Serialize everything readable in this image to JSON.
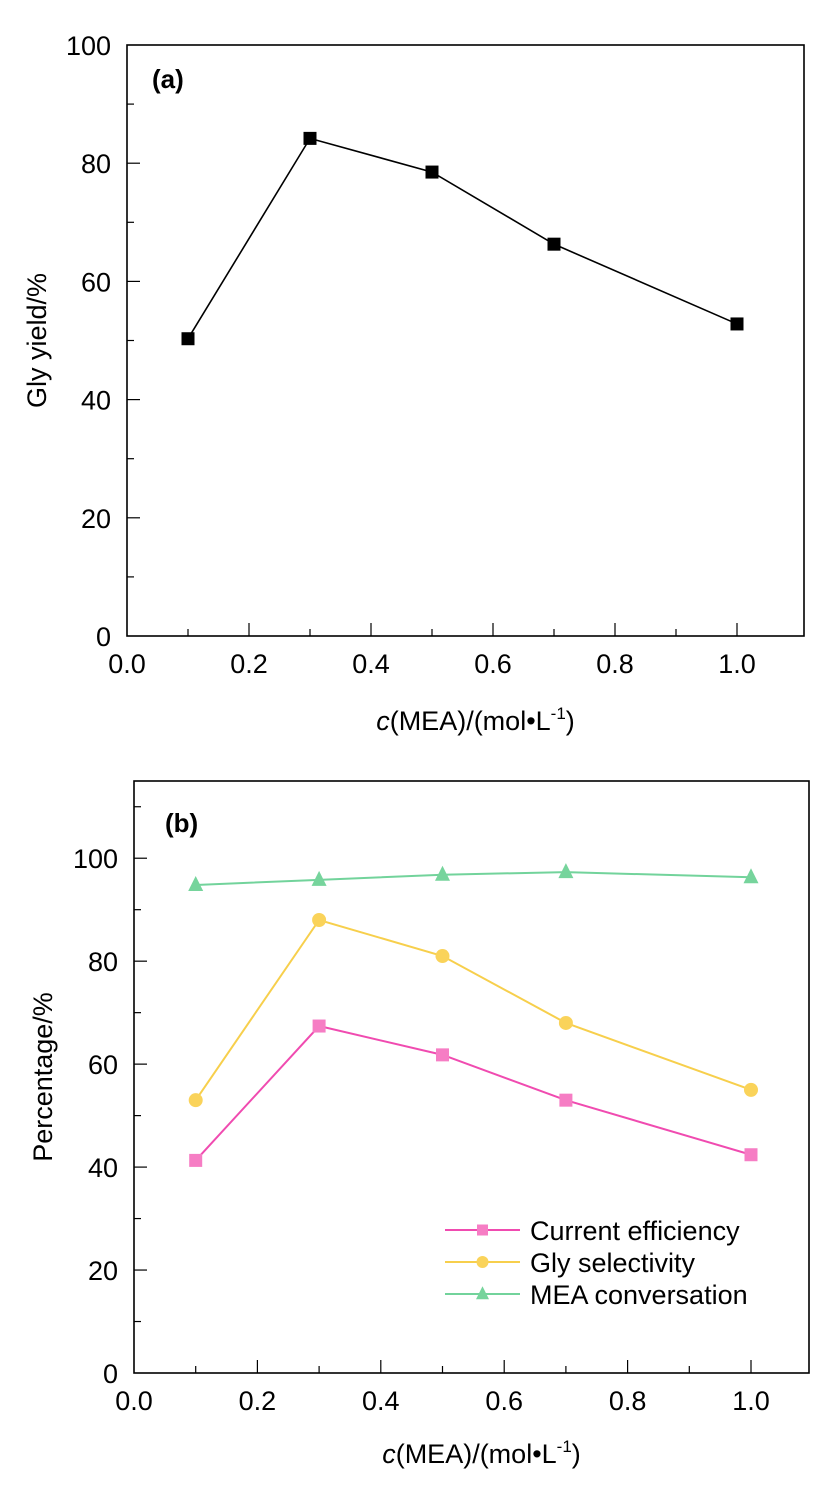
{
  "chart_data": [
    {
      "type": "line",
      "panel_label": "(a)",
      "title": "",
      "xlabel_italic": "c",
      "xlabel_rest": "(MEA)/(mol•L",
      "xlabel_sup": "-1",
      "xlabel_close": ")",
      "ylabel": "Gly yield/%",
      "xlim": [
        0,
        1.1
      ],
      "ylim": [
        0,
        100
      ],
      "x_ticks": [
        0.0,
        0.2,
        0.4,
        0.6,
        0.8,
        1.0
      ],
      "x_tick_labels": [
        "0.0",
        "0.2",
        "0.4",
        "0.6",
        "0.8",
        "1.0"
      ],
      "x_minor_ticks": [
        0.1,
        0.3,
        0.5,
        0.7,
        0.9
      ],
      "y_ticks": [
        0,
        20,
        40,
        60,
        80,
        100
      ],
      "y_tick_labels": [
        "0",
        "20",
        "40",
        "60",
        "80",
        "100"
      ],
      "y_minor_ticks": [
        10,
        30,
        50,
        70,
        90
      ],
      "grid": false,
      "legend": null,
      "x": [
        0.1,
        0.3,
        0.5,
        0.7,
        1.0
      ],
      "series": [
        {
          "name": "Gly yield",
          "values": [
            50.3,
            84.2,
            78.5,
            66.3,
            52.8
          ],
          "color": "#000000",
          "marker": "square"
        }
      ]
    },
    {
      "type": "line",
      "panel_label": "(b)",
      "title": "",
      "xlabel_italic": "c",
      "xlabel_rest": "(MEA)/(mol•L",
      "xlabel_sup": "-1",
      "xlabel_close": ")",
      "ylabel": "Percentage/%",
      "xlim": [
        0,
        1.1
      ],
      "ylim": [
        0,
        115
      ],
      "x_ticks": [
        0.0,
        0.2,
        0.4,
        0.6,
        0.8,
        1.0
      ],
      "x_tick_labels": [
        "0.0",
        "0.2",
        "0.4",
        "0.6",
        "0.8",
        "1.0"
      ],
      "x_minor_ticks": [
        0.1,
        0.3,
        0.5,
        0.7,
        0.9
      ],
      "y_ticks": [
        0,
        20,
        40,
        60,
        80,
        100
      ],
      "y_tick_labels": [
        "0",
        "20",
        "40",
        "60",
        "80",
        "100"
      ],
      "y_minor_ticks": [
        10,
        30,
        50,
        70,
        90,
        110
      ],
      "grid": false,
      "legend": "bottom-right",
      "x": [
        0.1,
        0.3,
        0.5,
        0.7,
        1.0
      ],
      "series": [
        {
          "name": "Current efficiency",
          "values": [
            41.3,
            67.4,
            61.8,
            53.0,
            42.4
          ],
          "color": "#f04bb0",
          "marker_color": "#f67dc4",
          "marker": "square"
        },
        {
          "name": "Gly selectivity",
          "values": [
            53.0,
            88.0,
            81.0,
            68.0,
            55.0
          ],
          "color": "#f7cf4c",
          "marker_color": "#fad35a",
          "marker": "circle"
        },
        {
          "name": "MEA conversation",
          "values": [
            94.8,
            95.8,
            96.8,
            97.3,
            96.3
          ],
          "color": "#72d39b",
          "marker_color": "#76d49c",
          "marker": "triangle"
        }
      ]
    }
  ]
}
